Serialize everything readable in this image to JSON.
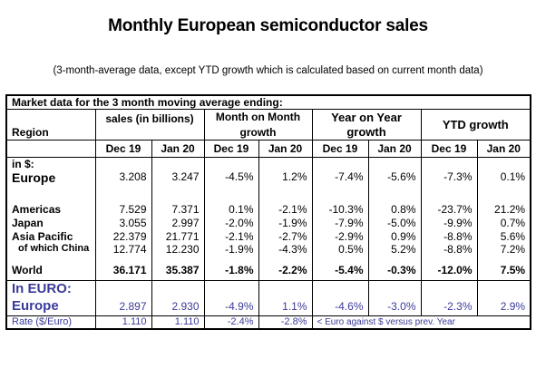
{
  "title": "Monthly European semiconductor sales",
  "subtitle": "(3-month-average data, except YTD growth which is calculated based on current month data)",
  "table": {
    "caption": "Market data for the 3 month moving average ending:",
    "headers": {
      "region": "Region",
      "sales": "sales (in billions)",
      "mom_line1": "Month on Month",
      "mom_line2": "growth",
      "yoy_line1": "Year on Year",
      "yoy_line2": "growth",
      "ytd": "YTD growth"
    },
    "periods": [
      "Dec 19",
      "Jan 20",
      "Dec 19",
      "Jan 20",
      "Dec 19",
      "Jan 20",
      "Dec 19",
      "Jan 20"
    ],
    "in_usd_label": "in $:",
    "rows": [
      {
        "region": "Europe",
        "values": [
          "3.208",
          "3.247",
          "-4.5%",
          "1.2%",
          "-7.4%",
          "-5.6%",
          "-7.3%",
          "0.1%"
        ]
      },
      {
        "region": "Americas",
        "values": [
          "7.529",
          "7.371",
          "0.1%",
          "-2.1%",
          "-10.3%",
          "0.8%",
          "-23.7%",
          "21.2%"
        ]
      },
      {
        "region": "Japan",
        "values": [
          "3.055",
          "2.997",
          "-2.0%",
          "-1.9%",
          "-7.9%",
          "-5.0%",
          "-9.9%",
          "0.7%"
        ]
      },
      {
        "region": "Asia Pacific",
        "values": [
          "22.379",
          "21.771",
          "-2.1%",
          "-2.7%",
          "-2.9%",
          "0.9%",
          "-8.8%",
          "5.6%"
        ]
      },
      {
        "region": "of which China",
        "values": [
          "12.774",
          "12.230",
          "-1.9%",
          "-4.3%",
          "0.5%",
          "5.2%",
          "-8.8%",
          "7.2%"
        ]
      }
    ],
    "world": {
      "region": "World",
      "values": [
        "36.171",
        "35.387",
        "-1.8%",
        "-2.2%",
        "-5.4%",
        "-0.3%",
        "-12.0%",
        "7.5%"
      ]
    },
    "in_euro_label": "In EURO:",
    "europe_euro": {
      "region": "Europe",
      "values": [
        "2.897",
        "2.930",
        "-4.9%",
        "1.1%",
        "-4.6%",
        "-3.0%",
        "-2.3%",
        "2.9%"
      ]
    },
    "rate": {
      "label": "Rate ($/Euro)",
      "values": [
        "1.110",
        "1.110",
        "-2.4%",
        "-2.8%"
      ],
      "note": "< Euro against $ versus prev. Year"
    }
  }
}
